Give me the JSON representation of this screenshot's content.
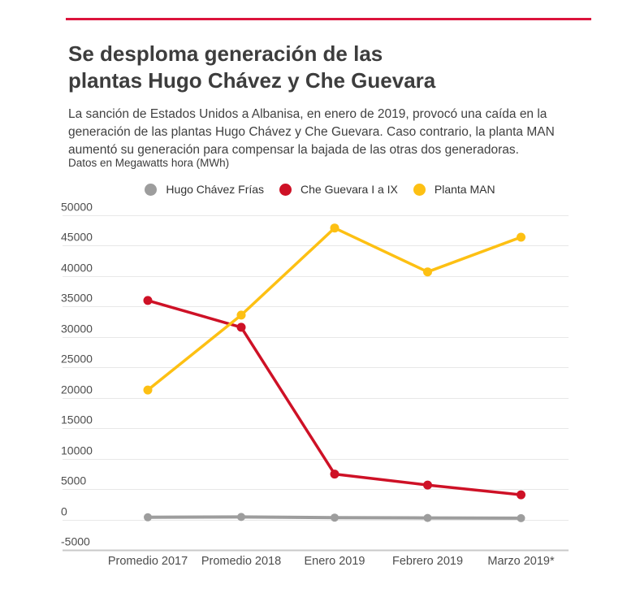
{
  "page": {
    "accent_bar_color": "#dc143c",
    "background_color": "#ffffff"
  },
  "header": {
    "title_lines": [
      "Se desploma generación de las",
      "plantas Hugo Chávez y Che Guevara"
    ],
    "title": "Se desploma generación de las plantas Hugo Chávez y Che Guevara",
    "subtitle": "La sanción de Estados Unidos a Albanisa, en enero de 2019, provocó una caída en la generación de las plantas Hugo Chávez y Che Guevara. Caso contrario, la planta MAN aumentó su generación para compensar la bajada de las otras dos generadoras.",
    "units_note": "Datos en Megawatts hora (MWh)"
  },
  "legend": {
    "items": [
      {
        "label": "Hugo Chávez Frías",
        "color": "#9d9d9d"
      },
      {
        "label": "Che Guevara I a IX",
        "color": "#ce1126"
      },
      {
        "label": "Planta MAN",
        "color": "#fdc013"
      }
    ]
  },
  "chart_data": {
    "type": "line",
    "title": "Se desploma generación de las plantas Hugo Chávez y Che Guevara",
    "units": "MWh",
    "categories": [
      "Promedio 2017",
      "Promedio 2018",
      "Enero 2019",
      "Febrero 2019",
      "Marzo 2019*"
    ],
    "series": [
      {
        "name": "Hugo Chávez Frías",
        "color": "#9d9d9d",
        "values": [
          400,
          450,
          350,
          300,
          250
        ]
      },
      {
        "name": "Che Guevara I a IX",
        "color": "#ce1126",
        "values": [
          36000,
          31600,
          7500,
          5700,
          4100
        ]
      },
      {
        "name": "Planta MAN",
        "color": "#fdc013",
        "values": [
          21300,
          33600,
          47900,
          40700,
          46400
        ]
      }
    ],
    "ylim": [
      -5000,
      50000
    ],
    "ytick_step": 5000,
    "yticks": [
      50000,
      45000,
      40000,
      35000,
      30000,
      25000,
      20000,
      15000,
      10000,
      5000,
      0,
      -5000
    ],
    "xlabel": "",
    "ylabel": "",
    "grid": true,
    "legend_position": "top",
    "axis_text_color": "#4d4d4d",
    "gridline_color": "#e8e8e8",
    "baseline_color": "#c9c9c9"
  }
}
